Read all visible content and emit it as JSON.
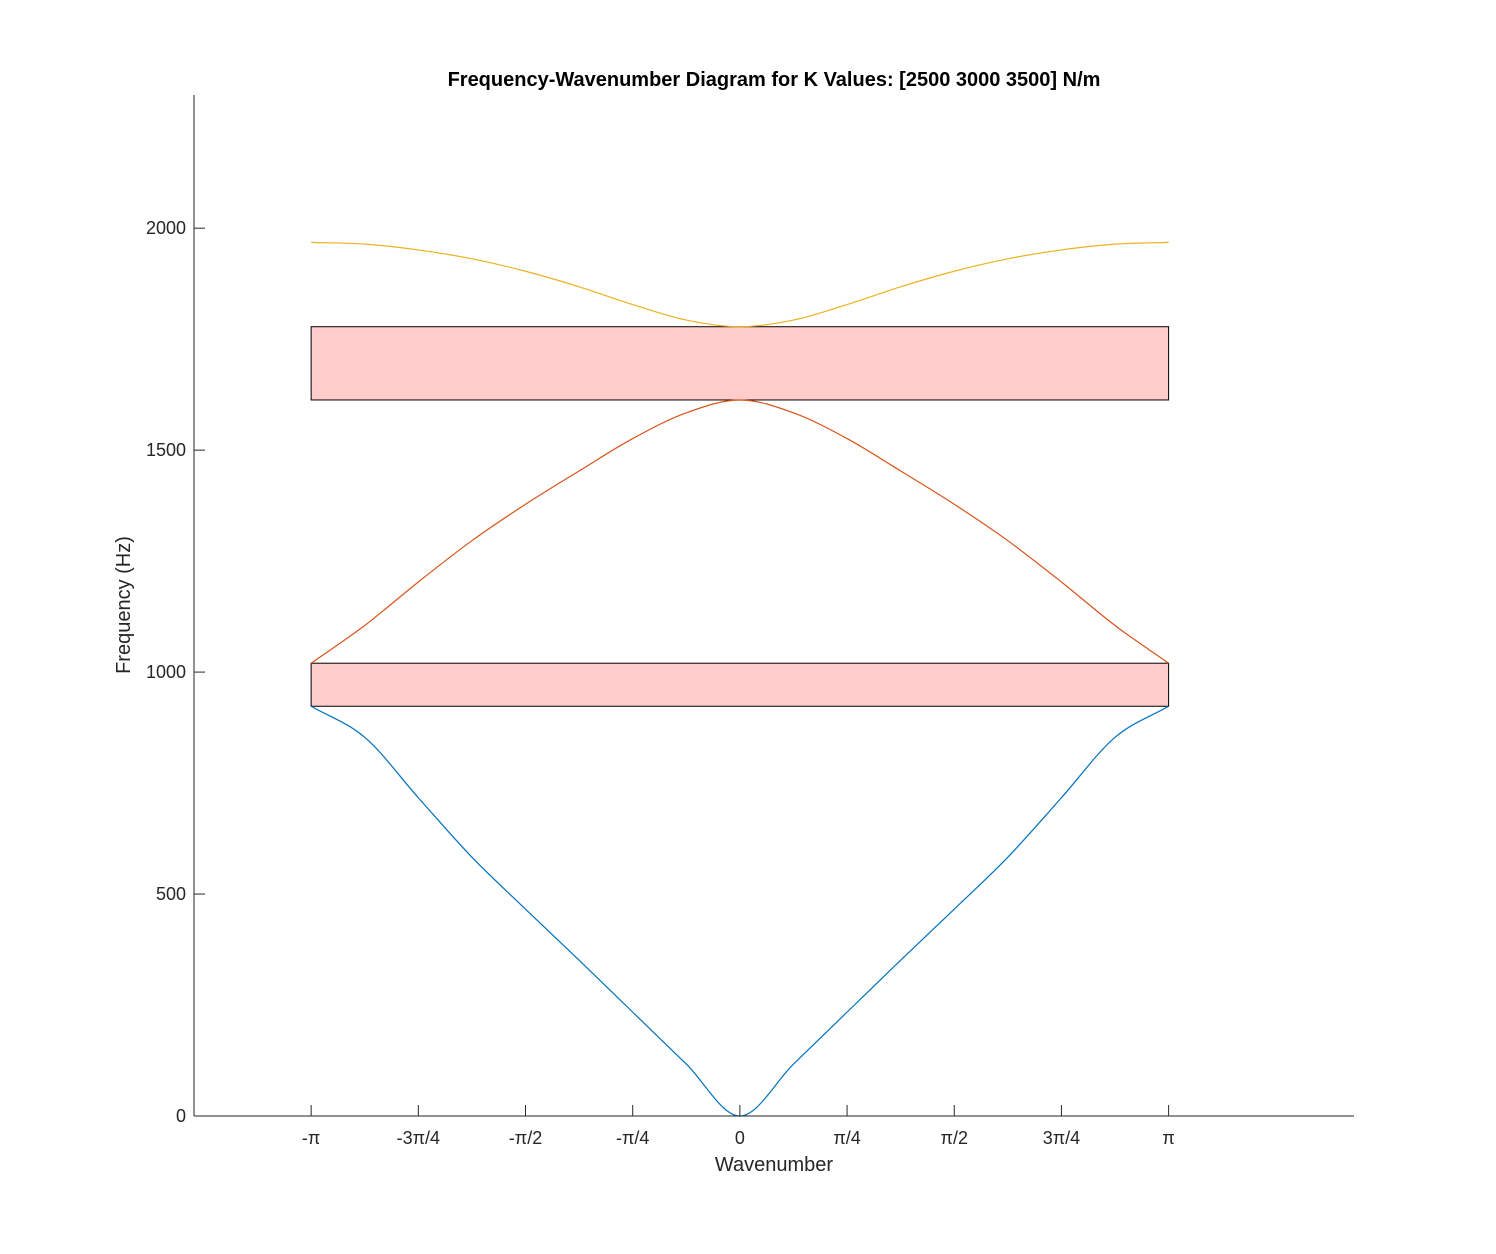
{
  "chart_data": {
    "type": "line",
    "title": "Frequency-Wavenumber Diagram for K Values: [2500  3000  3500] N/m",
    "xlabel": "Wavenumber",
    "ylabel": "Frequency (Hz)",
    "xlim": [
      -4.0,
      4.5
    ],
    "ylim": [
      0,
      2300
    ],
    "grid": false,
    "legend": "none",
    "x_ticks": [
      {
        "value": -3.14159,
        "label": "-π"
      },
      {
        "value": -2.35619,
        "label": "-3π/4"
      },
      {
        "value": -1.5708,
        "label": "-π/2"
      },
      {
        "value": -0.7854,
        "label": "-π/4"
      },
      {
        "value": 0,
        "label": "0"
      },
      {
        "value": 0.7854,
        "label": "π/4"
      },
      {
        "value": 1.5708,
        "label": "π/2"
      },
      {
        "value": 2.35619,
        "label": "3π/4"
      },
      {
        "value": 3.14159,
        "label": "π"
      }
    ],
    "y_ticks": [
      {
        "value": 0,
        "label": "0"
      },
      {
        "value": 500,
        "label": "500"
      },
      {
        "value": 1000,
        "label": "1000"
      },
      {
        "value": 1500,
        "label": "1500"
      },
      {
        "value": 2000,
        "label": "2000"
      }
    ],
    "series": [
      {
        "color": "#0072BD",
        "x": [
          -3.14159,
          -2.7489,
          -2.35619,
          -1.9635,
          -1.5708,
          -1.1781,
          -0.7854,
          -0.3927,
          0,
          0.3927,
          0.7854,
          1.1781,
          1.5708,
          1.9635,
          2.35619,
          2.7489,
          3.14159
        ],
        "y": [
          923,
          853,
          717,
          583,
          466,
          351,
          234,
          117,
          0,
          117,
          234,
          351,
          466,
          583,
          717,
          853,
          923
        ]
      },
      {
        "color": "#D95319",
        "x": [
          -3.14159,
          -2.7489,
          -2.35619,
          -1.9635,
          -1.5708,
          -1.1781,
          -0.7854,
          -0.3927,
          0,
          0.3927,
          0.7854,
          1.1781,
          1.5708,
          1.9635,
          2.35619,
          2.7489,
          3.14159
        ],
        "y": [
          1020,
          1105,
          1203,
          1296,
          1378,
          1453,
          1526,
          1584,
          1613,
          1584,
          1526,
          1453,
          1378,
          1296,
          1203,
          1105,
          1020
        ]
      },
      {
        "color": "#EDB120",
        "x": [
          -3.14159,
          -2.7489,
          -2.35619,
          -1.9635,
          -1.5708,
          -1.1781,
          -0.7854,
          -0.3927,
          0,
          0.3927,
          0.7854,
          1.1781,
          1.5708,
          1.9635,
          2.35619,
          2.7489,
          3.14159
        ],
        "y": [
          1968,
          1964,
          1951,
          1931,
          1903,
          1868,
          1828,
          1793,
          1778,
          1793,
          1828,
          1868,
          1903,
          1931,
          1951,
          1964,
          1968
        ]
      }
    ],
    "band_gaps": [
      {
        "x_range": [
          -3.14159,
          3.14159
        ],
        "y_range": [
          923,
          1020
        ],
        "color": "#FFCCCC"
      },
      {
        "x_range": [
          -3.14159,
          3.14159
        ],
        "y_range": [
          1613,
          1778
        ],
        "color": "#FFCCCC"
      }
    ]
  }
}
